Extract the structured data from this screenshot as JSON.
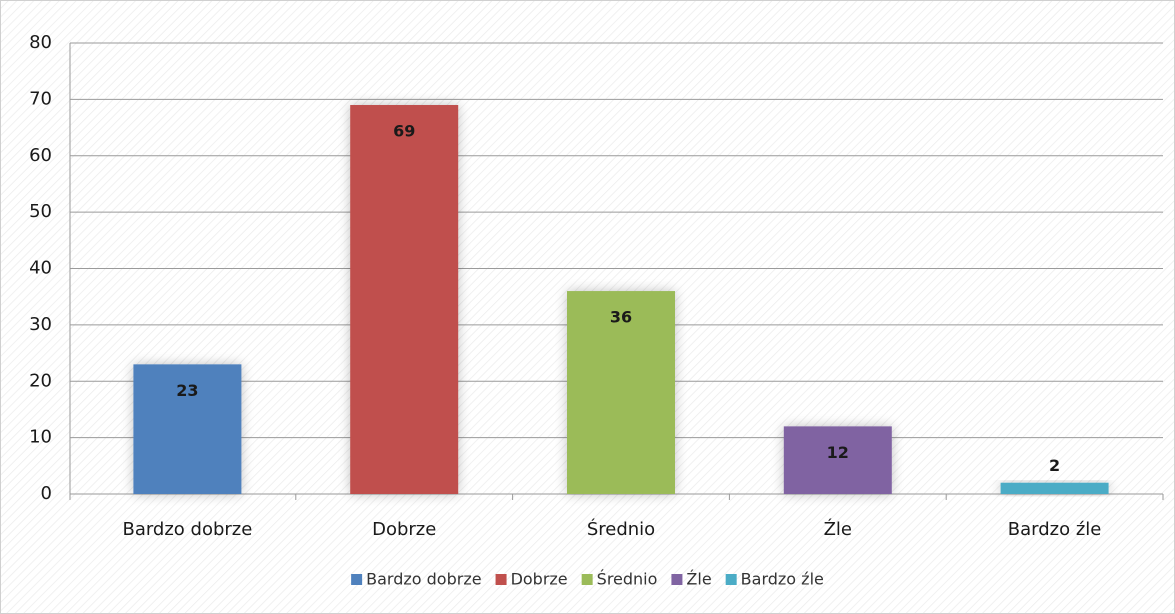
{
  "chart_data": {
    "type": "bar",
    "categories": [
      "Bardzo dobrze",
      "Dobrze",
      "Średnio",
      "Źle",
      "Bardzo źle"
    ],
    "values": [
      23,
      69,
      36,
      12,
      2
    ],
    "colors": [
      "#4f81bd",
      "#c0504d",
      "#9bbb59",
      "#8064a2",
      "#4bacc6"
    ],
    "ylim": [
      0,
      80
    ],
    "yticks": [
      0,
      10,
      20,
      30,
      40,
      50,
      60,
      70,
      80
    ],
    "grid": true,
    "legend": "bottom"
  }
}
